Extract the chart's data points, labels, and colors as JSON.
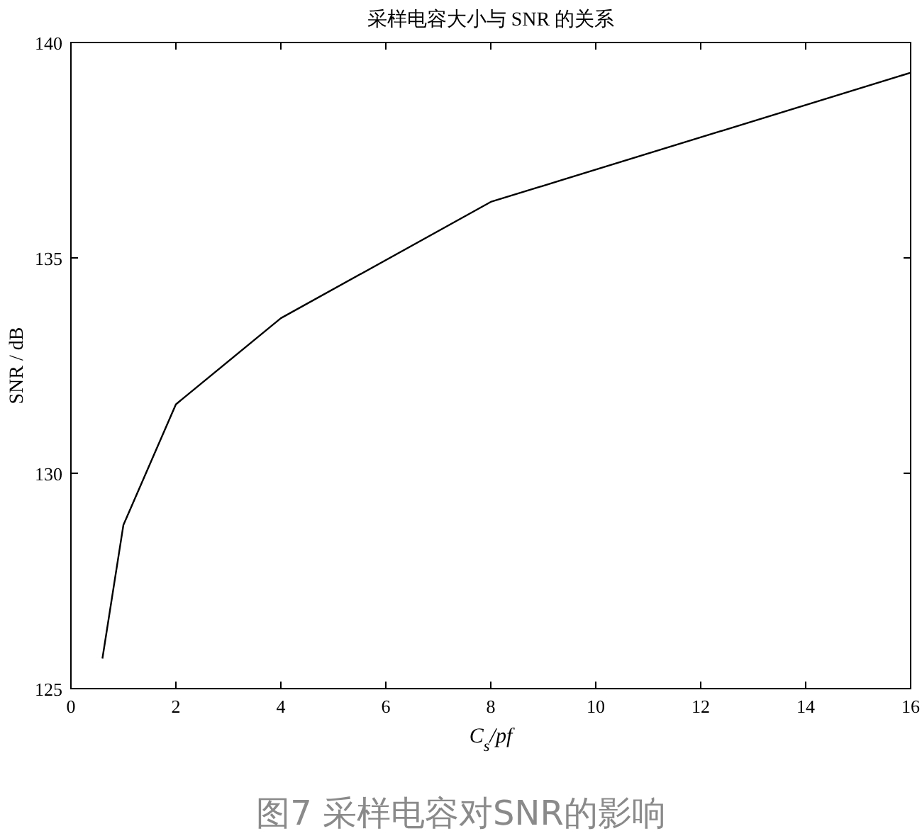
{
  "chart_data": {
    "type": "line",
    "title": "采样电容大小与 SNR 的关系",
    "xlabel": "C$_{s}$/pf",
    "ylabel": "SNR / dB",
    "x": [
      0.6,
      1,
      2,
      4,
      8,
      16
    ],
    "series": [
      {
        "color": "#000000",
        "values": [
          125.7,
          128.8,
          131.6,
          133.6,
          136.3,
          139.3
        ]
      }
    ],
    "xlim": [
      0,
      16
    ],
    "xticks": [
      0,
      2,
      4,
      6,
      8,
      10,
      12,
      14,
      16
    ],
    "ylim": [
      125,
      140
    ],
    "yticks": [
      125,
      130,
      135,
      140
    ],
    "grid": false,
    "marker": "none",
    "line_style": "solid",
    "annotations": [
      "图7 采样电容对SNR的影响"
    ]
  }
}
